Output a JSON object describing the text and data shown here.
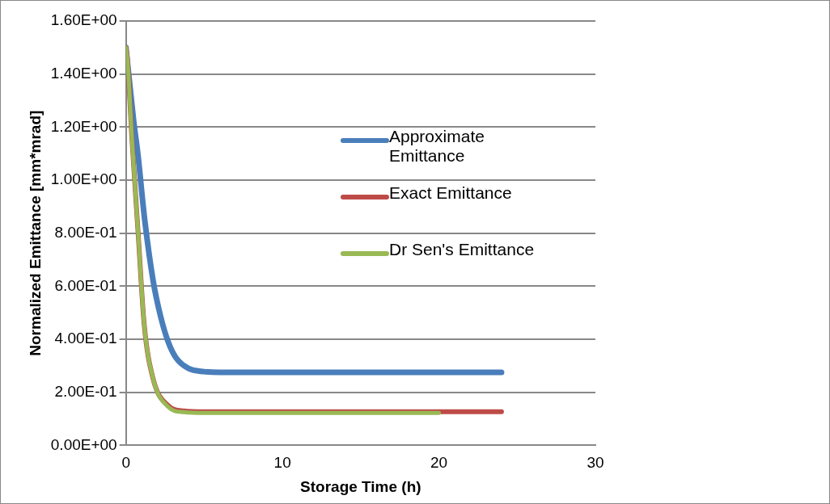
{
  "chart_data": {
    "type": "line",
    "xlabel": "Storage Time (h)",
    "ylabel": "Normalized Emittance [mm*mrad]",
    "xlim": [
      0,
      30
    ],
    "xticks": [
      0,
      10,
      20,
      30
    ],
    "ylim": [
      0,
      1.6
    ],
    "yticks": [
      {
        "value": 0,
        "label": "0.00E+00"
      },
      {
        "value": 0.2,
        "label": "2.00E-01"
      },
      {
        "value": 0.4,
        "label": "4.00E-01"
      },
      {
        "value": 0.6,
        "label": "6.00E-01"
      },
      {
        "value": 0.8,
        "label": "8.00E-01"
      },
      {
        "value": 1,
        "label": "1.00E+00"
      },
      {
        "value": 1.2,
        "label": "1.20E+00"
      },
      {
        "value": 1.4,
        "label": "1.40E+00"
      },
      {
        "value": 1.6,
        "label": "1.60E+00"
      }
    ],
    "grid": "y",
    "legend": "right",
    "marker": "none",
    "line_style": "solid",
    "series": [
      {
        "name": "Approximate Emittance",
        "color": "#4a7ebb",
        "x": [
          0,
          0.5,
          0.76,
          1.2,
          1.74,
          2.2,
          2.7,
          3.2,
          4,
          5,
          6,
          24
        ],
        "values": [
          1.5,
          1.22,
          1.1,
          0.85,
          0.62,
          0.49,
          0.39,
          0.33,
          0.29,
          0.278,
          0.275,
          0.275
        ]
      },
      {
        "name": "Exact Emittance",
        "color": "#be4b48",
        "x": [
          0,
          0.1,
          0.39,
          0.78,
          1.16,
          1.74,
          2.7,
          3.7,
          5,
          24
        ],
        "values": [
          1.5,
          1.45,
          1.15,
          0.8,
          0.46,
          0.25,
          0.15,
          0.13,
          0.127,
          0.127
        ]
      },
      {
        "name": "Dr Sen's Emittance",
        "color": "#98b954",
        "x": [
          0,
          0.1,
          0.39,
          0.78,
          1.16,
          1.74,
          2.7,
          3.7,
          5,
          20
        ],
        "values": [
          1.5,
          1.45,
          1.15,
          0.8,
          0.46,
          0.25,
          0.145,
          0.125,
          0.122,
          0.122
        ]
      }
    ]
  }
}
